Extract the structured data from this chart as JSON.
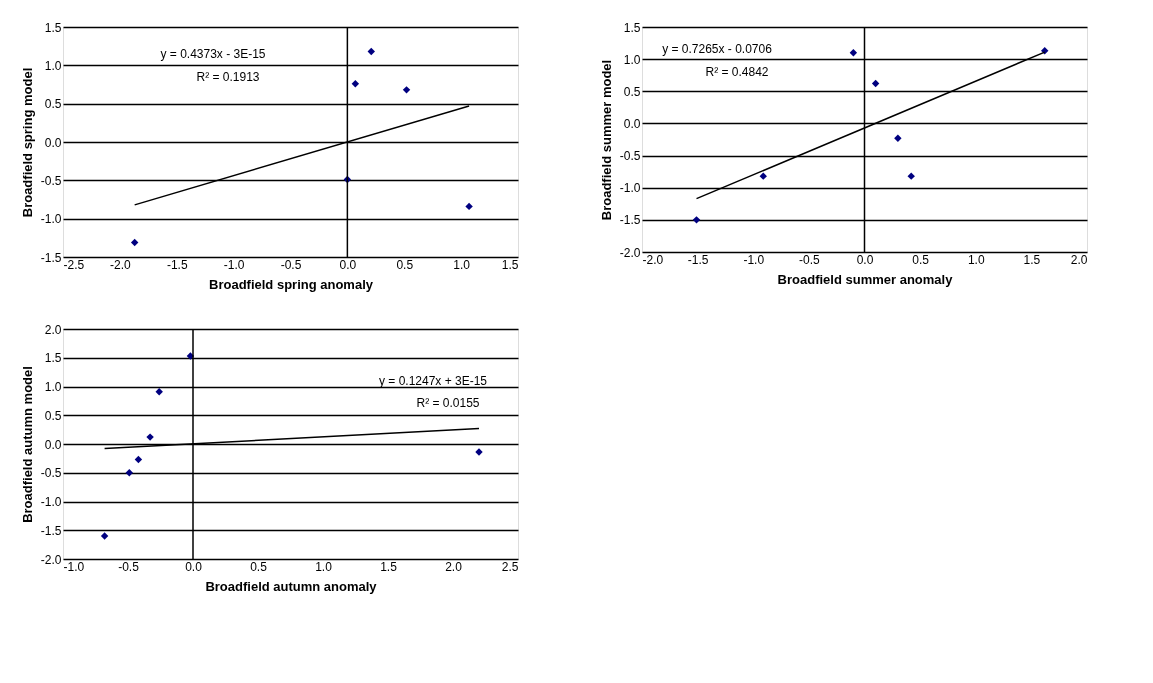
{
  "chart_data": [
    {
      "type": "scatter",
      "xlabel": "Broadfield spring anomaly",
      "ylabel": "Broadfield spring model",
      "xlim": [
        -2.5,
        1.5
      ],
      "xticks": [
        {
          "value": -2.5,
          "label": "-2.5"
        },
        {
          "value": -2,
          "label": "-2.0"
        },
        {
          "value": -1.5,
          "label": "-1.5"
        },
        {
          "value": -1,
          "label": "-1.0"
        },
        {
          "value": -0.5,
          "label": "-0.5"
        },
        {
          "value": 0,
          "label": "0.0"
        },
        {
          "value": 0.5,
          "label": "0.5"
        },
        {
          "value": 1,
          "label": "1.0"
        },
        {
          "value": 1.5,
          "label": "1.5"
        }
      ],
      "ylim": [
        -1.5,
        1.5
      ],
      "yticks": [
        {
          "value": -1.5,
          "label": "-1.5"
        },
        {
          "value": -1,
          "label": "-1.0"
        },
        {
          "value": -0.5,
          "label": "-0.5"
        },
        {
          "value": 0,
          "label": "0.0"
        },
        {
          "value": 0.5,
          "label": "0.5"
        },
        {
          "value": 1,
          "label": "1.0"
        },
        {
          "value": 1.5,
          "label": "1.5"
        }
      ],
      "grid": "y",
      "series": [
        {
          "color": "#000080",
          "marker": "diamond",
          "x": [
            -1.87,
            0.0,
            0.07,
            0.21,
            0.52,
            1.07
          ],
          "values": [
            -1.31,
            -0.49,
            0.76,
            1.18,
            0.68,
            -0.84
          ]
        },
        {
          "type": "line",
          "color": "#000000",
          "x": [
            -1.87,
            1.07
          ],
          "values": [
            -0.82,
            0.47
          ],
          "marker": "none"
        }
      ],
      "ref_lines": [
        {
          "axis": "x",
          "value": 0
        }
      ],
      "annotations": [
        "y = 0.4373x  - 3E-15",
        "R² = 0.1913"
      ]
    },
    {
      "type": "scatter",
      "xlabel": "Broadfield summer anomaly",
      "ylabel": "Broadfield summer model",
      "xlim": [
        -2,
        2
      ],
      "xticks": [
        {
          "value": -2,
          "label": "-2.0"
        },
        {
          "value": -1.5,
          "label": "-1.5"
        },
        {
          "value": -1,
          "label": "-1.0"
        },
        {
          "value": -0.5,
          "label": "-0.5"
        },
        {
          "value": 0,
          "label": "0.0"
        },
        {
          "value": 0.5,
          "label": "0.5"
        },
        {
          "value": 1,
          "label": "1.0"
        },
        {
          "value": 1.5,
          "label": "1.5"
        },
        {
          "value": 2,
          "label": "2.0"
        }
      ],
      "ylim": [
        -2,
        1.5
      ],
      "yticks": [
        {
          "value": -2,
          "label": "-2.0"
        },
        {
          "value": -1.5,
          "label": "-1.5"
        },
        {
          "value": -1,
          "label": "-1.0"
        },
        {
          "value": -0.5,
          "label": "-0.5"
        },
        {
          "value": 0,
          "label": "0.0"
        },
        {
          "value": 0.5,
          "label": "0.5"
        },
        {
          "value": 1,
          "label": "1.0"
        },
        {
          "value": 1.5,
          "label": "1.5"
        }
      ],
      "grid": "y",
      "series": [
        {
          "color": "#000080",
          "marker": "diamond",
          "x": [
            -1.51,
            -0.91,
            -0.1,
            0.1,
            0.3,
            0.42,
            1.62
          ],
          "values": [
            -1.5,
            -0.82,
            1.1,
            0.62,
            -0.23,
            -0.82,
            1.13
          ]
        },
        {
          "type": "line",
          "color": "#000000",
          "x": [
            -1.51,
            1.62
          ],
          "values": [
            -1.17,
            1.11
          ],
          "marker": "none"
        }
      ],
      "ref_lines": [
        {
          "axis": "x",
          "value": 0
        }
      ],
      "annotations": [
        "y = 0.7265x - 0.0706",
        "R² = 0.4842"
      ]
    },
    {
      "type": "scatter",
      "xlabel": "Broadfield autumn anomaly",
      "ylabel": "Broadfield autumn model",
      "xlim": [
        -1,
        2.5
      ],
      "xticks": [
        {
          "value": -1,
          "label": "-1.0"
        },
        {
          "value": -0.5,
          "label": "-0.5"
        },
        {
          "value": 0,
          "label": "0.0"
        },
        {
          "value": 0.5,
          "label": "0.5"
        },
        {
          "value": 1,
          "label": "1.0"
        },
        {
          "value": 1.5,
          "label": "1.5"
        },
        {
          "value": 2,
          "label": "2.0"
        },
        {
          "value": 2.5,
          "label": "2.5"
        }
      ],
      "ylim": [
        -2,
        2
      ],
      "yticks": [
        {
          "value": -2,
          "label": "-2.0"
        },
        {
          "value": -1.5,
          "label": "-1.5"
        },
        {
          "value": -1,
          "label": "-1.0"
        },
        {
          "value": -0.5,
          "label": "-0.5"
        },
        {
          "value": 0,
          "label": "0.0"
        },
        {
          "value": 0.5,
          "label": "0.5"
        },
        {
          "value": 1,
          "label": "1.0"
        },
        {
          "value": 1.5,
          "label": "1.5"
        },
        {
          "value": 2,
          "label": "2.0"
        }
      ],
      "grid": "y",
      "series": [
        {
          "color": "#000080",
          "marker": "diamond",
          "x": [
            -0.68,
            -0.49,
            -0.42,
            -0.33,
            -0.26,
            -0.02,
            2.2
          ],
          "values": [
            -1.6,
            -0.5,
            -0.27,
            0.12,
            0.91,
            1.53,
            -0.14
          ]
        },
        {
          "type": "line",
          "color": "#000000",
          "x": [
            -0.68,
            2.2
          ],
          "values": [
            -0.08,
            0.27
          ],
          "marker": "none"
        }
      ],
      "ref_lines": [
        {
          "axis": "x",
          "value": 0
        }
      ],
      "annotations": [
        "y = 0.1247x + 3E-15",
        "R² = 0.0155"
      ]
    }
  ]
}
